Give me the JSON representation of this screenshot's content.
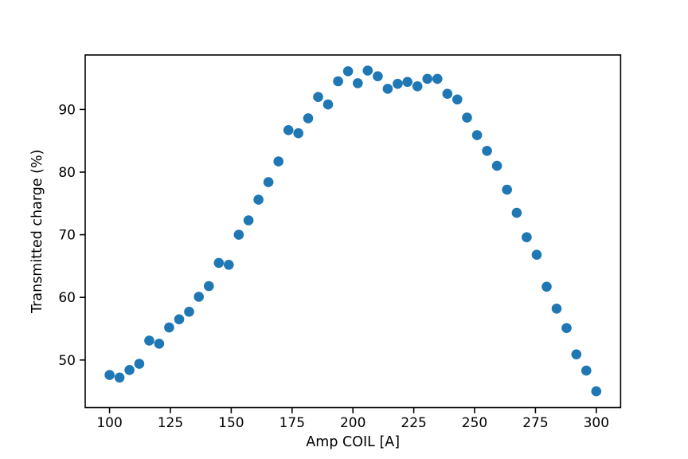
{
  "figure": {
    "background": "#ffffff",
    "description": "Scatter plot of transmitted charge percentage versus coil current"
  },
  "chart_data": {
    "type": "scatter",
    "title": "",
    "xlabel": "Amp COIL [A]",
    "ylabel": "Transmitted charge (%)",
    "xlim": [
      90,
      310
    ],
    "ylim": [
      42.4,
      98.7
    ],
    "xticks": [
      100,
      125,
      150,
      175,
      200,
      225,
      250,
      275,
      300
    ],
    "yticks": [
      50,
      60,
      70,
      80,
      90
    ],
    "grid": false,
    "legend_position": "none",
    "marker": {
      "shape": "circle",
      "color": "#1f77b4",
      "radius_px": 6.3
    },
    "axis_color": "#000000",
    "series": [
      {
        "name": "transmitted-charge",
        "x": [
          100.0,
          104.1,
          108.2,
          112.2,
          116.3,
          120.4,
          124.5,
          128.6,
          132.7,
          136.7,
          140.8,
          144.9,
          149.0,
          153.1,
          157.1,
          161.2,
          165.3,
          169.4,
          173.5,
          177.6,
          181.6,
          185.7,
          189.8,
          193.9,
          198.0,
          202.0,
          206.1,
          210.2,
          214.3,
          218.4,
          222.4,
          226.5,
          230.6,
          234.7,
          238.8,
          242.9,
          246.9,
          251.0,
          255.1,
          259.2,
          263.3,
          267.3,
          271.4,
          275.5,
          279.6,
          283.7,
          287.8,
          291.8,
          295.9,
          300.0
        ],
        "y": [
          47.6,
          47.2,
          48.4,
          49.4,
          53.1,
          52.6,
          55.2,
          56.5,
          57.7,
          60.1,
          61.8,
          65.5,
          65.2,
          70.0,
          72.3,
          75.6,
          78.4,
          81.7,
          86.7,
          86.2,
          88.6,
          92.0,
          90.8,
          94.5,
          96.1,
          94.2,
          96.2,
          95.3,
          93.3,
          94.1,
          94.4,
          93.7,
          94.9,
          94.9,
          92.5,
          91.6,
          88.7,
          85.9,
          83.4,
          81.0,
          77.2,
          73.5,
          69.6,
          66.8,
          61.7,
          58.2,
          55.1,
          50.9,
          48.3,
          45.0
        ]
      }
    ]
  }
}
